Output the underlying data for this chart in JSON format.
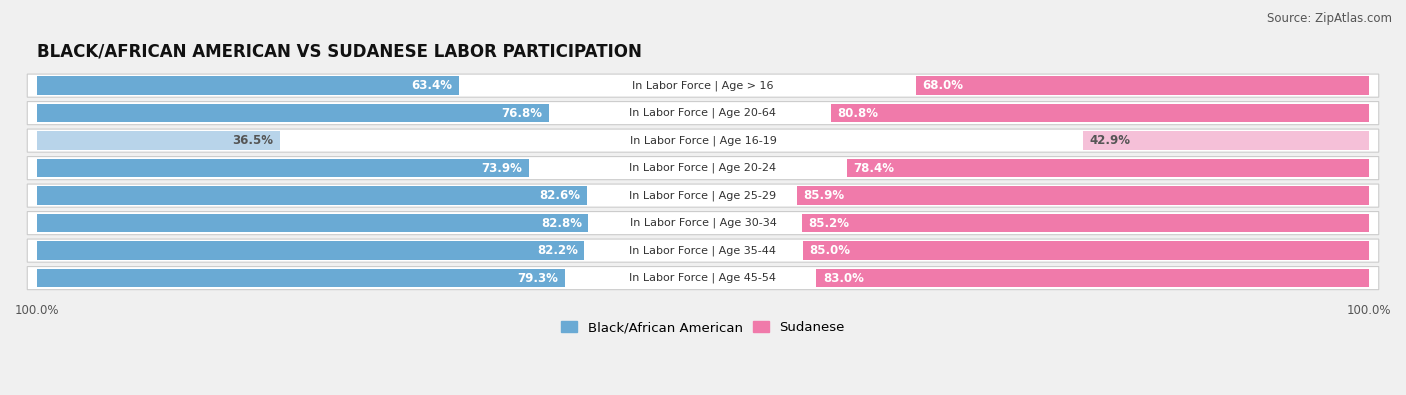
{
  "title": "BLACK/AFRICAN AMERICAN VS SUDANESE LABOR PARTICIPATION",
  "source": "Source: ZipAtlas.com",
  "categories": [
    "In Labor Force | Age > 16",
    "In Labor Force | Age 20-64",
    "In Labor Force | Age 16-19",
    "In Labor Force | Age 20-24",
    "In Labor Force | Age 25-29",
    "In Labor Force | Age 30-34",
    "In Labor Force | Age 35-44",
    "In Labor Force | Age 45-54"
  ],
  "black_values": [
    63.4,
    76.8,
    36.5,
    73.9,
    82.6,
    82.8,
    82.2,
    79.3
  ],
  "sudanese_values": [
    68.0,
    80.8,
    42.9,
    78.4,
    85.9,
    85.2,
    85.0,
    83.0
  ],
  "black_color": "#6aaad4",
  "sudanese_color": "#f07aaa",
  "black_light_color": "#b8d4ea",
  "sudanese_light_color": "#f5c0d8",
  "bar_height": 0.68,
  "background_color": "#f0f0f0",
  "row_bg_color": "#ffffff",
  "title_fontsize": 12,
  "source_fontsize": 8.5,
  "value_fontsize": 8.5,
  "cat_fontsize": 8,
  "legend_fontsize": 9.5,
  "axis_label_fontsize": 8.5,
  "max_val": 100.0
}
